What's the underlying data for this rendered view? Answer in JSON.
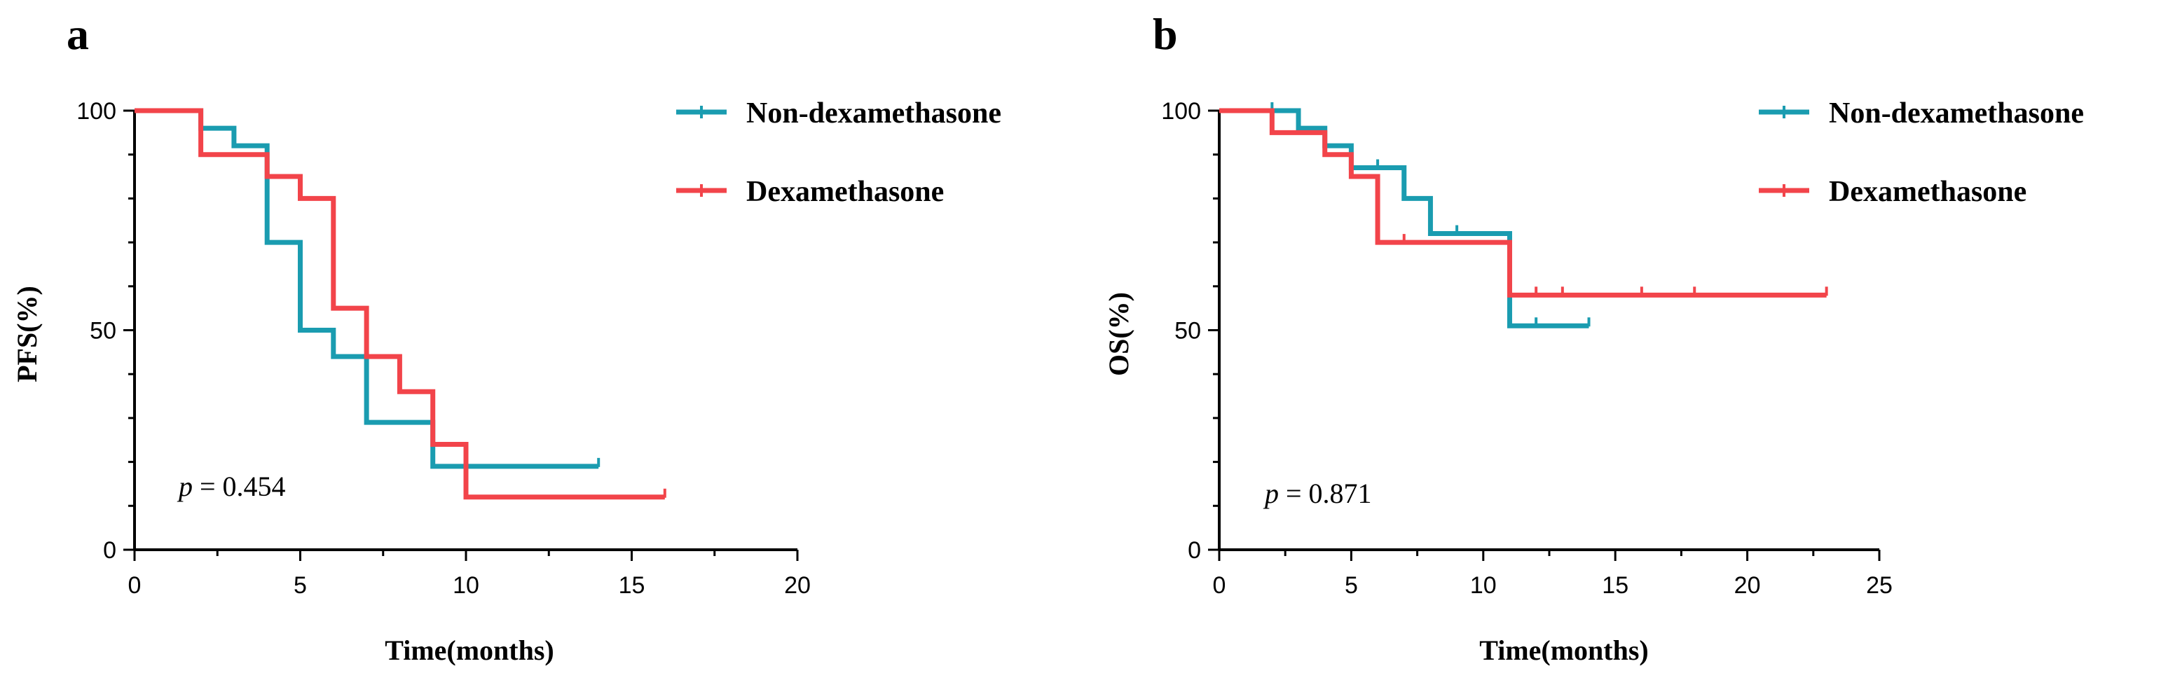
{
  "chart_data": [
    {
      "type": "line",
      "subtype": "kaplan-meier",
      "panel": "a",
      "xlabel": "Time(months)",
      "ylabel": "PFS(%)",
      "xlim": [
        0,
        20
      ],
      "ylim": [
        0,
        100
      ],
      "xticks": [
        "0",
        "5",
        "10",
        "15",
        "20"
      ],
      "yticks": [
        "0",
        "50",
        "100"
      ],
      "legend_position": "top-right",
      "annotation": {
        "p_symbol": "p",
        "p_rest": " = 0.454"
      },
      "series": [
        {
          "name": "Non-dexamethasone",
          "color": "#1a9cb0",
          "steps": [
            [
              0,
              100
            ],
            [
              2,
              96
            ],
            [
              3,
              92
            ],
            [
              4,
              70
            ],
            [
              5,
              50
            ],
            [
              6,
              44
            ],
            [
              7,
              29
            ],
            [
              9,
              19
            ],
            [
              14,
              19
            ]
          ],
          "censored": [
            [
              14,
              19
            ]
          ]
        },
        {
          "name": "Dexamethasone",
          "color": "#f2444a",
          "steps": [
            [
              0,
              100
            ],
            [
              2,
              90
            ],
            [
              4,
              85
            ],
            [
              5,
              80
            ],
            [
              6,
              55
            ],
            [
              7,
              44
            ],
            [
              8,
              36
            ],
            [
              9,
              24
            ],
            [
              10,
              12
            ],
            [
              16,
              12
            ]
          ],
          "censored": [
            [
              16,
              12
            ]
          ]
        }
      ]
    },
    {
      "type": "line",
      "subtype": "kaplan-meier",
      "panel": "b",
      "xlabel": "Time(months)",
      "ylabel": "OS(%)",
      "xlim": [
        0,
        25
      ],
      "ylim": [
        0,
        100
      ],
      "xticks": [
        "0",
        "5",
        "10",
        "15",
        "20",
        "25"
      ],
      "yticks": [
        "0",
        "50",
        "100"
      ],
      "legend_position": "top-right",
      "annotation": {
        "p_symbol": "p",
        "p_rest": " = 0.871"
      },
      "series": [
        {
          "name": "Non-dexamethasone",
          "color": "#1a9cb0",
          "steps": [
            [
              0,
              100
            ],
            [
              3,
              96
            ],
            [
              4,
              92
            ],
            [
              5,
              87
            ],
            [
              7,
              80
            ],
            [
              8,
              72
            ],
            [
              11,
              51
            ],
            [
              14,
              51
            ]
          ],
          "censored": [
            [
              2,
              100
            ],
            [
              6,
              87
            ],
            [
              9,
              72
            ],
            [
              12,
              51
            ],
            [
              14,
              51
            ]
          ]
        },
        {
          "name": "Dexamethasone",
          "color": "#f2444a",
          "steps": [
            [
              0,
              100
            ],
            [
              2,
              95
            ],
            [
              4,
              90
            ],
            [
              5,
              85
            ],
            [
              6,
              70
            ],
            [
              11,
              58
            ],
            [
              23,
              58
            ]
          ],
          "censored": [
            [
              7,
              70
            ],
            [
              12,
              58
            ],
            [
              13,
              58
            ],
            [
              16,
              58
            ],
            [
              18,
              58
            ],
            [
              23,
              58
            ]
          ]
        }
      ]
    }
  ]
}
